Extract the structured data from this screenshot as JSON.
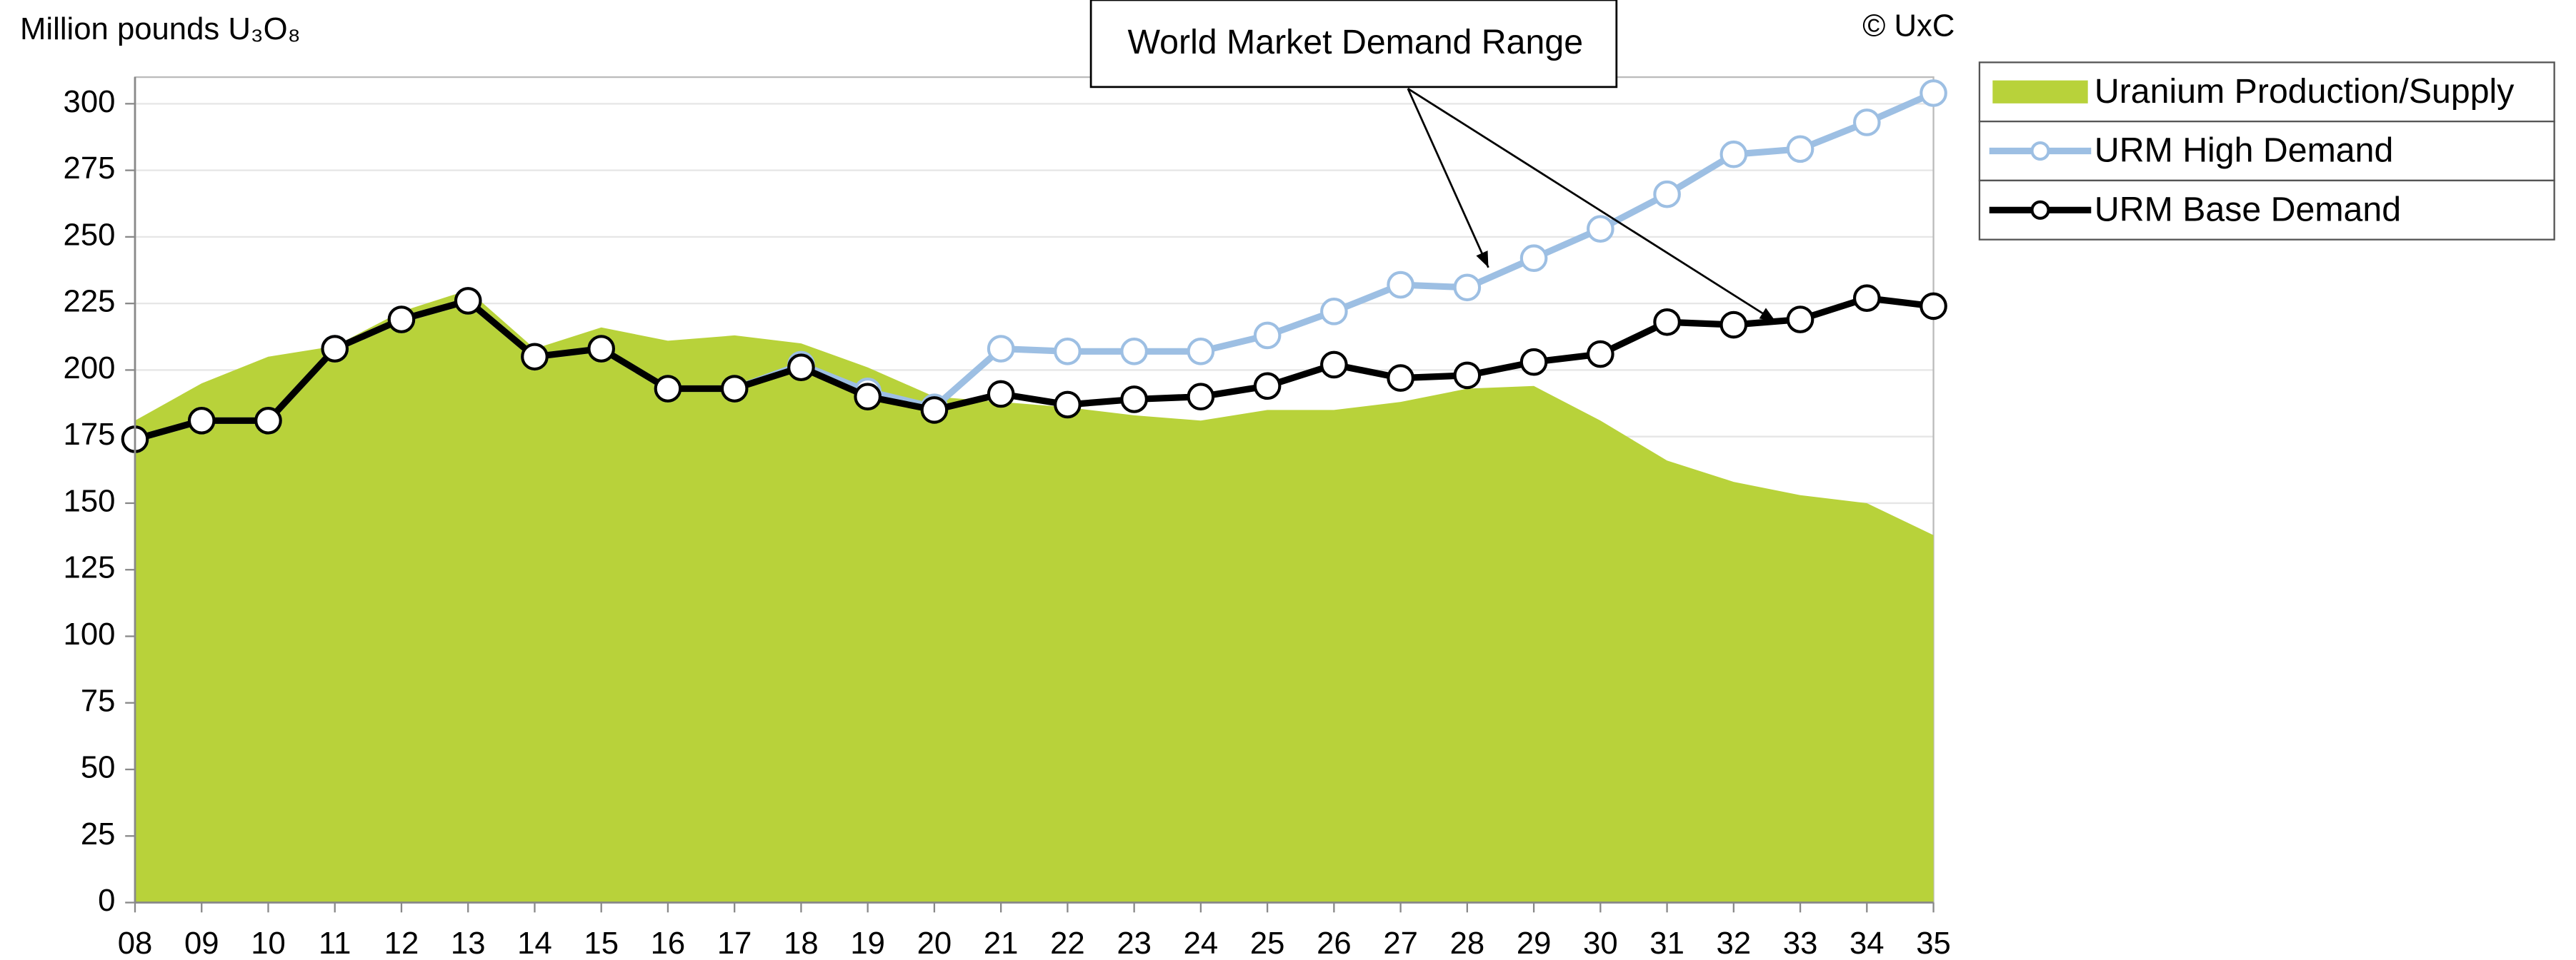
{
  "chart_data": {
    "type": "line",
    "y_label": "Million pounds U₃O₈",
    "note": "© UxC",
    "annotation": "World Market Demand Range",
    "categories": [
      "08",
      "09",
      "10",
      "11",
      "12",
      "13",
      "14",
      "15",
      "16",
      "17",
      "18",
      "19",
      "20",
      "21",
      "22",
      "23",
      "24",
      "25",
      "26",
      "27",
      "28",
      "29",
      "30",
      "31",
      "32",
      "33",
      "34",
      "35"
    ],
    "series": [
      {
        "name": "Uranium Production/Supply",
        "type": "area",
        "color": "#b8d23a",
        "values": [
          181,
          195,
          205,
          209,
          222,
          230,
          208,
          216,
          211,
          213,
          210,
          201,
          190,
          188,
          186,
          183,
          181,
          185,
          185,
          188,
          193,
          194,
          181,
          166,
          158,
          153,
          150,
          138
        ]
      },
      {
        "name": "URM High Demand",
        "type": "line",
        "color": "#9dbfe3",
        "values": [
          174,
          181,
          181,
          208,
          219,
          226,
          205,
          208,
          193,
          193,
          202,
          192,
          186,
          208,
          207,
          207,
          207,
          213,
          222,
          232,
          231,
          242,
          253,
          266,
          281,
          283,
          293,
          304
        ]
      },
      {
        "name": "URM Base Demand",
        "type": "line",
        "color": "#000000",
        "values": [
          174,
          181,
          181,
          208,
          219,
          226,
          205,
          208,
          193,
          193,
          201,
          190,
          185,
          191,
          187,
          189,
          190,
          194,
          202,
          197,
          198,
          203,
          206,
          218,
          217,
          219,
          227,
          224
        ]
      }
    ],
    "ylim": [
      0,
      310
    ],
    "yticks": [
      0,
      25,
      50,
      75,
      100,
      125,
      150,
      175,
      200,
      225,
      250,
      275,
      300
    ],
    "grid": true,
    "legend": "right"
  }
}
